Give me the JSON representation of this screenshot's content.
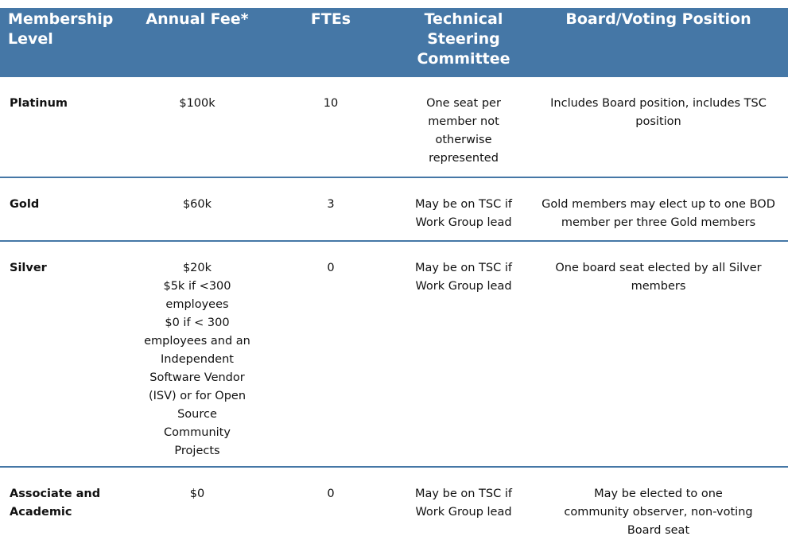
{
  "header": {
    "level": "Membership Level",
    "fee": "Annual Fee*",
    "ftes": "FTEs",
    "tsc": "Technical Steering Committee",
    "board": "Board/Voting Position"
  },
  "rows": [
    {
      "level": "Platinum",
      "fee": [
        "$100k"
      ],
      "ftes": "10",
      "tsc": "One seat per member not otherwise represented",
      "board": "Includes Board position, includes TSC position"
    },
    {
      "level": "Gold",
      "fee": [
        "$60k"
      ],
      "ftes": "3",
      "tsc": "May be on TSC if Work Group lead",
      "board": "Gold members may elect up to one BOD member per three Gold members"
    },
    {
      "level": "Silver",
      "fee": [
        "$20k",
        "$5k if <300 employees",
        "$0 if < 300 employees and an Independent Software Vendor (ISV) or for Open Source Community Projects"
      ],
      "ftes": "0",
      "tsc": "May be on TSC if Work Group lead",
      "board": "One board seat elected by all Silver members"
    },
    {
      "level": "Associate and Academic",
      "fee": [
        "$0"
      ],
      "ftes": "0",
      "tsc": "May be on TSC if Work Group lead",
      "board": "May be elected to one community observer, non-voting Board seat"
    }
  ],
  "colors": {
    "header_bg": "#4577a6",
    "header_text": "#ffffff",
    "divider": "#4577a6"
  }
}
